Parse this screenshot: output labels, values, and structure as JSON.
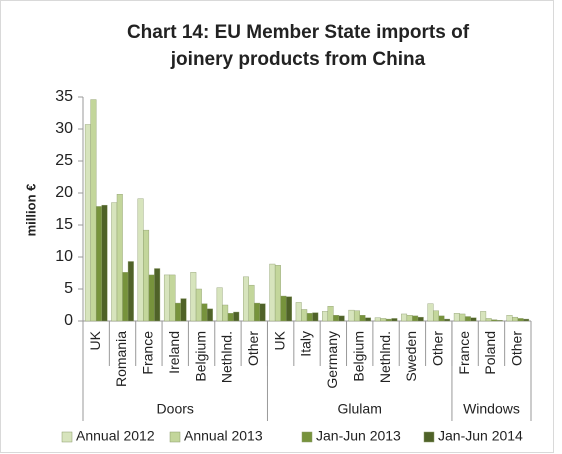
{
  "chart_data": {
    "type": "bar",
    "title": [
      "Chart 14: EU Member State imports of",
      "joinery products from China"
    ],
    "y_label": "million €",
    "categories": [
      "UK",
      "Romania",
      "France",
      "Ireland",
      "Belgium",
      "Nethlnd.",
      "Other",
      "UK",
      "Italy",
      "Germany",
      "Belgium",
      "Nethlnd.",
      "Sweden",
      "Other",
      "France",
      "Poland",
      "Other"
    ],
    "category_groups": [
      "Doors",
      "Doors",
      "Doors",
      "Doors",
      "Doors",
      "Doors",
      "Doors",
      "Glulam",
      "Glulam",
      "Glulam",
      "Glulam",
      "Glulam",
      "Glulam",
      "Glulam",
      "Windows",
      "Windows",
      "Windows"
    ],
    "series": [
      {
        "name": "Annual 2012",
        "color": "#d7e4bd",
        "values": [
          30.7,
          18.5,
          19.1,
          7.2,
          7.6,
          5.2,
          6.9,
          8.9,
          2.9,
          1.5,
          1.7,
          0.5,
          1.1,
          2.7,
          1.2,
          1.5,
          0.9
        ]
      },
      {
        "name": "Annual 2013",
        "color": "#c3d69b",
        "values": [
          34.6,
          19.8,
          14.2,
          7.2,
          5.0,
          2.5,
          5.6,
          8.7,
          1.8,
          2.3,
          1.6,
          0.4,
          0.9,
          1.6,
          1.1,
          0.4,
          0.6
        ]
      },
      {
        "name": "Jan-Jun 2013",
        "color": "#77933c",
        "values": [
          17.9,
          7.6,
          7.2,
          2.8,
          2.7,
          1.2,
          2.8,
          3.9,
          1.2,
          0.9,
          0.9,
          0.3,
          0.8,
          0.8,
          0.7,
          0.2,
          0.4
        ]
      },
      {
        "name": "Jan-Jun 2014",
        "color": "#4f6228",
        "values": [
          18.1,
          9.3,
          8.2,
          3.5,
          1.9,
          1.4,
          2.7,
          3.8,
          1.3,
          0.8,
          0.5,
          0.4,
          0.6,
          0.3,
          0.5,
          0.1,
          0.3
        ]
      }
    ],
    "ylim": [
      0,
      35
    ],
    "yticks": [
      0,
      5,
      10,
      15,
      20,
      25,
      30,
      35
    ],
    "grid": false,
    "legend": "bottom"
  }
}
